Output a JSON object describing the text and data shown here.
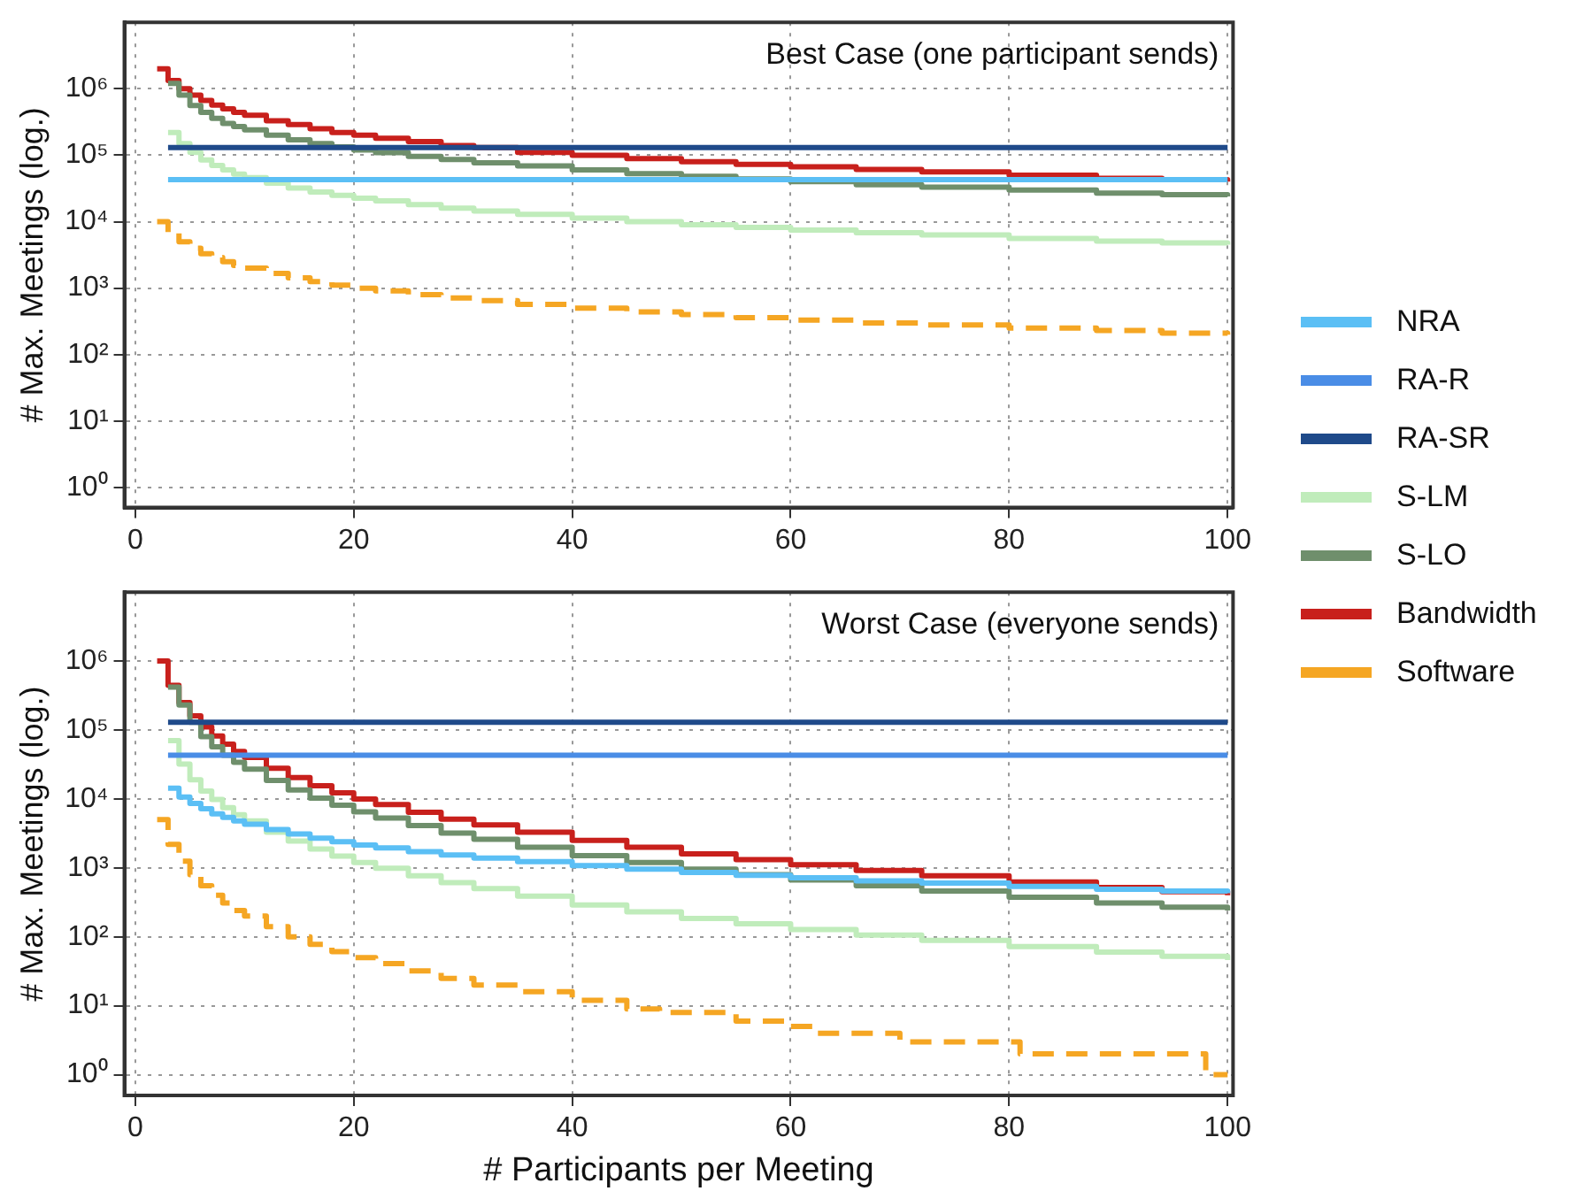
{
  "chart_data": [
    {
      "type": "step",
      "ylabel": "# Max. Meetings (log.)",
      "annotations": [
        "Best Case (one participant sends)"
      ],
      "log": "y",
      "grid": true,
      "line_style": "solid",
      "marker": "none",
      "legend": "right",
      "xlim": [
        -1,
        100.5
      ],
      "xticks": [
        0,
        20,
        40,
        60,
        80,
        100
      ],
      "ylim": [
        0.5,
        10000000
      ],
      "yticks": [
        {
          "value": 1,
          "label": "10⁰"
        },
        {
          "value": 10,
          "label": "10¹"
        },
        {
          "value": 100,
          "label": "10²"
        },
        {
          "value": 1000,
          "label": "10³"
        },
        {
          "value": 10000,
          "label": "10⁴"
        },
        {
          "value": 100000,
          "label": "10⁵"
        },
        {
          "value": 1000000,
          "label": "10⁶"
        }
      ],
      "x": [
        2,
        3,
        4,
        5,
        6,
        7,
        8,
        9,
        10,
        12,
        14,
        16,
        18,
        20,
        22,
        25,
        28,
        31,
        35,
        40,
        45,
        50,
        55,
        60,
        66,
        72,
        80,
        88,
        94,
        100
      ],
      "series": [
        {
          "name": "NRA",
          "color": "#5bbff5",
          "x": [
            3,
            100
          ],
          "values": [
            43000,
            43000
          ]
        },
        {
          "name": "RA-R",
          "color": "#4a8de6",
          "values": [
            null,
            null,
            null,
            null,
            null,
            null,
            null,
            null,
            null,
            null,
            null,
            null,
            null,
            null,
            null,
            null,
            null,
            null,
            null,
            null,
            null,
            null,
            null,
            null,
            null,
            null,
            null,
            null,
            null,
            null
          ]
        },
        {
          "name": "RA-SR",
          "color": "#1f4a8a",
          "x": [
            3,
            100
          ],
          "values": [
            130000,
            130000
          ]
        },
        {
          "name": "S-LM",
          "color": "#c0ecbb",
          "values": [
            null,
            220000,
            150000,
            110000,
            85000,
            70000,
            60000,
            52000,
            46000,
            38000,
            32000,
            28000,
            25000,
            22500,
            20500,
            18000,
            16000,
            14500,
            12900,
            11300,
            10000,
            9000,
            8200,
            7500,
            6800,
            6300,
            5600,
            5100,
            4800,
            4500
          ]
        },
        {
          "name": "S-LO",
          "color": "#6f8f6c",
          "values": [
            null,
            1200000,
            800000,
            560000,
            440000,
            360000,
            300000,
            270000,
            240000,
            200000,
            170000,
            150000,
            133000,
            120000,
            109000,
            96000,
            86000,
            77000,
            69000,
            60000,
            53000,
            48000,
            44000,
            40000,
            36000,
            33000,
            30000,
            27000,
            25500,
            24000
          ]
        },
        {
          "name": "Bandwidth",
          "color": "#c8201c",
          "values": [
            2000000,
            1330000,
            1000000,
            800000,
            670000,
            570000,
            500000,
            440000,
            400000,
            330000,
            290000,
            250000,
            220000,
            200000,
            180000,
            160000,
            140000,
            130000,
            110000,
            100000,
            89000,
            80000,
            73000,
            67000,
            61000,
            56000,
            50000,
            45000,
            43000,
            40000
          ]
        },
        {
          "name": "Software",
          "color": "#f5a623",
          "line_style": "dashed",
          "values": [
            10000,
            6700,
            5000,
            4000,
            3300,
            2900,
            2500,
            2200,
            2000,
            1670,
            1430,
            1250,
            1110,
            1000,
            910,
            800,
            710,
            650,
            570,
            500,
            440,
            400,
            360,
            330,
            300,
            280,
            250,
            230,
            210,
            200
          ]
        }
      ]
    },
    {
      "type": "step",
      "xlabel": "# Participants per Meeting",
      "ylabel": "# Max. Meetings (log.)",
      "annotations": [
        "Worst Case (everyone sends)"
      ],
      "log": "y",
      "grid": true,
      "line_style": "solid",
      "marker": "none",
      "xlim": [
        -1,
        100.5
      ],
      "xticks": [
        0,
        20,
        40,
        60,
        80,
        100
      ],
      "ylim": [
        0.5,
        10000000
      ],
      "yticks": [
        {
          "value": 1,
          "label": "10⁰"
        },
        {
          "value": 10,
          "label": "10¹"
        },
        {
          "value": 100,
          "label": "10²"
        },
        {
          "value": 1000,
          "label": "10³"
        },
        {
          "value": 10000,
          "label": "10⁴"
        },
        {
          "value": 100000,
          "label": "10⁵"
        },
        {
          "value": 1000000,
          "label": "10⁶"
        }
      ],
      "x": [
        2,
        3,
        4,
        5,
        6,
        7,
        8,
        9,
        10,
        12,
        14,
        16,
        18,
        20,
        22,
        25,
        28,
        31,
        35,
        40,
        45,
        50,
        55,
        60,
        66,
        72,
        80,
        88,
        94,
        100
      ],
      "series": [
        {
          "color": "#5bbff5",
          "values": [
            null,
            14300,
            10700,
            8600,
            7200,
            6100,
            5400,
            4800,
            4300,
            3600,
            3100,
            2700,
            2400,
            2150,
            1950,
            1720,
            1540,
            1390,
            1230,
            1080,
            960,
            860,
            780,
            720,
            650,
            600,
            540,
            490,
            460,
            430
          ]
        },
        {
          "color": "#4a8de6",
          "x": [
            3,
            100
          ],
          "values": [
            43000,
            43000
          ]
        },
        {
          "color": "#1f4a8a",
          "x": [
            3,
            100
          ],
          "values": [
            130000,
            130000
          ]
        },
        {
          "color": "#c0ecbb",
          "values": [
            null,
            70000,
            32000,
            19000,
            13000,
            9800,
            7500,
            5900,
            4800,
            3300,
            2450,
            1880,
            1480,
            1200,
            990,
            770,
            610,
            500,
            390,
            290,
            230,
            185,
            155,
            128,
            106,
            89,
            72,
            60,
            52,
            46
          ]
        },
        {
          "color": "#6f8f6c",
          "values": [
            null,
            420000,
            230000,
            130000,
            80000,
            57000,
            43000,
            34000,
            27000,
            18500,
            13500,
            10300,
            8100,
            6500,
            5300,
            4100,
            3200,
            2600,
            2000,
            1500,
            1200,
            960,
            800,
            670,
            550,
            460,
            375,
            310,
            270,
            240
          ]
        },
        {
          "color": "#c8201c",
          "values": [
            1000000,
            444000,
            250000,
            160000,
            111000,
            82000,
            62500,
            49000,
            40000,
            27800,
            20400,
            15600,
            12300,
            10000,
            8300,
            6400,
            5100,
            4200,
            3300,
            2500,
            2000,
            1600,
            1320,
            1110,
            920,
            770,
            625,
            520,
            450,
            400
          ]
        },
        {
          "color": "#f5a623",
          "line_style": "dashed",
          "x": [
            2,
            3,
            4,
            5,
            6,
            7,
            8,
            9,
            10,
            12,
            14,
            16,
            18,
            20,
            22,
            25,
            28,
            31,
            35,
            40,
            45,
            48,
            55,
            60,
            62,
            70,
            81,
            98,
            100
          ],
          "values": [
            5000,
            2200,
            1250,
            800,
            550,
            400,
            310,
            240,
            200,
            140,
            100,
            78,
            61,
            50,
            41,
            32,
            25,
            20,
            16,
            12,
            9,
            8,
            6,
            5,
            4,
            3,
            2,
            1,
            1
          ]
        }
      ]
    }
  ]
}
